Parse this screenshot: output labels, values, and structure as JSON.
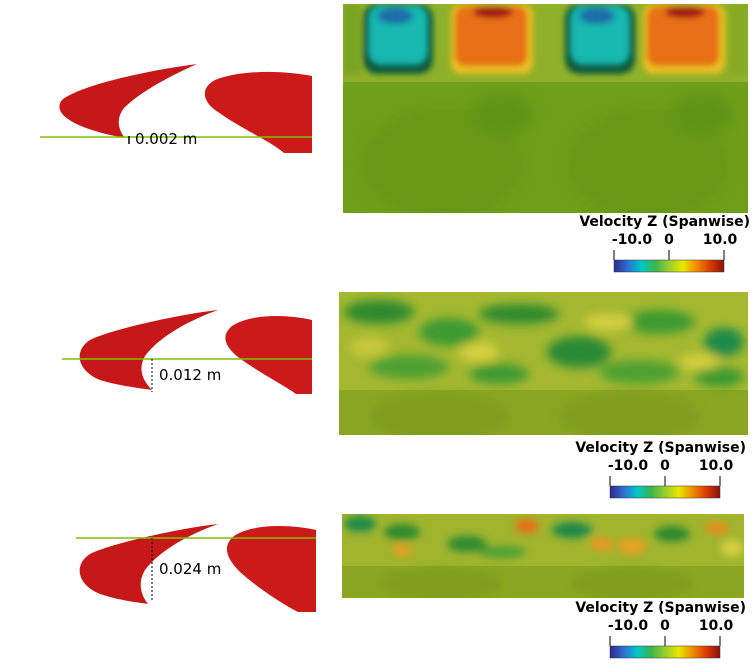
{
  "panels": [
    {
      "distance_label": "0.002 m"
    },
    {
      "distance_label": "0.012 m"
    },
    {
      "distance_label": "0.024 m"
    }
  ],
  "legend": {
    "title": "Velocity Z (Spanwise)",
    "min_label": "-10.0",
    "mid_label": "0",
    "max_label": "10.0",
    "colormap": [
      "#2a2a8a",
      "#2f6fd0",
      "#00c8c8",
      "#3cb44b",
      "#9acd32",
      "#e8e800",
      "#f08c00",
      "#d73c00",
      "#8b1010"
    ]
  },
  "colors": {
    "airfoil_red": "#cc1a1a",
    "slat_red": "#c61818",
    "line_green": "#7fbf00",
    "field_base": "#6e9e1a"
  }
}
